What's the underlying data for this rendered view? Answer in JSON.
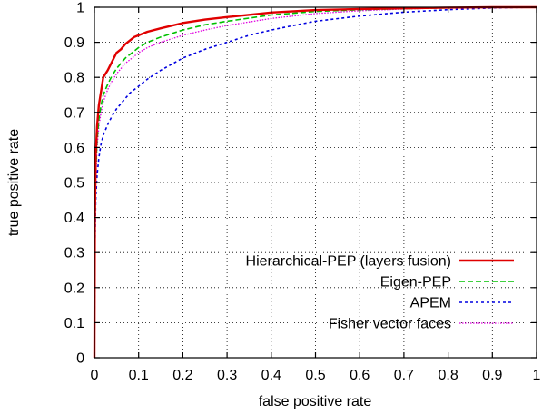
{
  "chart_data": {
    "type": "line",
    "title": "",
    "xlabel": "false positive rate",
    "ylabel": "true positive rate",
    "xlim": [
      0,
      1
    ],
    "ylim": [
      0,
      1
    ],
    "grid": true,
    "legend_position": "bottom-right",
    "x_ticks": [
      "0",
      "0.1",
      "0.2",
      "0.3",
      "0.4",
      "0.5",
      "0.6",
      "0.7",
      "0.8",
      "0.9",
      "1"
    ],
    "y_ticks": [
      "0",
      "0.1",
      "0.2",
      "0.3",
      "0.4",
      "0.5",
      "0.6",
      "0.7",
      "0.8",
      "0.9",
      "1"
    ],
    "series": [
      {
        "name": "Hierarchical-PEP (layers fusion)",
        "color": "#e00000",
        "style": "solid",
        "x": [
          0,
          0.001,
          0.003,
          0.006,
          0.01,
          0.015,
          0.02,
          0.03,
          0.04,
          0.05,
          0.06,
          0.07,
          0.08,
          0.09,
          0.1,
          0.12,
          0.15,
          0.2,
          0.25,
          0.3,
          0.4,
          0.5,
          0.6,
          0.7,
          0.8,
          0.9,
          1.0
        ],
        "y": [
          0,
          0.4,
          0.58,
          0.66,
          0.72,
          0.76,
          0.8,
          0.82,
          0.845,
          0.87,
          0.88,
          0.895,
          0.905,
          0.915,
          0.92,
          0.93,
          0.94,
          0.955,
          0.965,
          0.972,
          0.985,
          0.992,
          0.995,
          0.997,
          0.999,
          1.0,
          1.0
        ]
      },
      {
        "name": "Eigen-PEP",
        "color": "#00c000",
        "style": "dashed",
        "x": [
          0,
          0.001,
          0.003,
          0.006,
          0.01,
          0.015,
          0.02,
          0.03,
          0.04,
          0.05,
          0.06,
          0.07,
          0.08,
          0.09,
          0.1,
          0.12,
          0.15,
          0.2,
          0.25,
          0.3,
          0.4,
          0.5,
          0.6,
          0.7,
          0.8,
          0.9,
          1.0
        ],
        "y": [
          0,
          0.35,
          0.53,
          0.62,
          0.68,
          0.72,
          0.75,
          0.78,
          0.805,
          0.825,
          0.84,
          0.855,
          0.865,
          0.875,
          0.885,
          0.9,
          0.915,
          0.935,
          0.95,
          0.96,
          0.978,
          0.988,
          0.993,
          0.996,
          0.998,
          1.0,
          1.0
        ]
      },
      {
        "name": "APEM",
        "color": "#0000e0",
        "style": "dotted",
        "x": [
          0,
          0.001,
          0.003,
          0.006,
          0.01,
          0.015,
          0.02,
          0.03,
          0.04,
          0.05,
          0.06,
          0.07,
          0.08,
          0.09,
          0.1,
          0.12,
          0.15,
          0.2,
          0.25,
          0.3,
          0.35,
          0.4,
          0.45,
          0.5,
          0.6,
          0.7,
          0.8,
          0.9,
          1.0
        ],
        "y": [
          0,
          0.3,
          0.45,
          0.52,
          0.57,
          0.61,
          0.635,
          0.665,
          0.69,
          0.71,
          0.725,
          0.74,
          0.755,
          0.765,
          0.775,
          0.795,
          0.82,
          0.855,
          0.88,
          0.9,
          0.92,
          0.935,
          0.948,
          0.96,
          0.975,
          0.986,
          0.993,
          0.998,
          1.0
        ]
      },
      {
        "name": "Fisher vector faces",
        "color": "#e000e0",
        "style": "dotted-fine",
        "x": [
          0,
          0.001,
          0.003,
          0.006,
          0.01,
          0.015,
          0.02,
          0.03,
          0.04,
          0.05,
          0.06,
          0.07,
          0.08,
          0.09,
          0.1,
          0.12,
          0.15,
          0.2,
          0.25,
          0.3,
          0.4,
          0.5,
          0.6,
          0.7,
          0.8,
          0.9,
          1.0
        ],
        "y": [
          0,
          0.33,
          0.5,
          0.6,
          0.66,
          0.7,
          0.73,
          0.765,
          0.79,
          0.81,
          0.825,
          0.84,
          0.85,
          0.86,
          0.87,
          0.885,
          0.9,
          0.92,
          0.935,
          0.948,
          0.968,
          0.982,
          0.99,
          0.995,
          0.998,
          1.0,
          1.0
        ]
      }
    ]
  }
}
